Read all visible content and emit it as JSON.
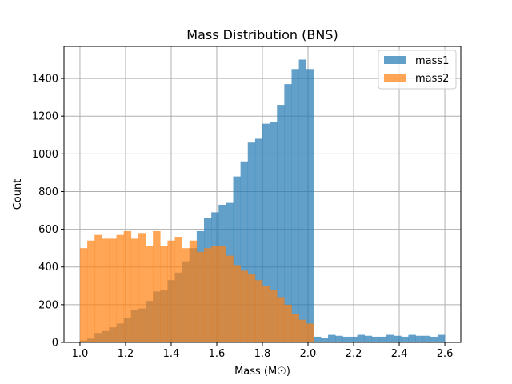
{
  "chart_data": {
    "type": "histogram",
    "title": "Mass Distribution (BNS)",
    "xlabel": "Mass (M☉)",
    "ylabel": "Count",
    "xlim": [
      0.93,
      2.67
    ],
    "ylim": [
      0,
      1570
    ],
    "xticks": [
      1.0,
      1.2,
      1.4,
      1.6,
      1.8,
      2.0,
      2.2,
      2.4,
      2.6
    ],
    "xtick_labels": [
      "1.0",
      "1.2",
      "1.4",
      "1.6",
      "1.8",
      "2.0",
      "2.2",
      "2.4",
      "2.6"
    ],
    "yticks": [
      0,
      200,
      400,
      600,
      800,
      1000,
      1200,
      1400
    ],
    "ytick_labels": [
      "0",
      "200",
      "400",
      "600",
      "800",
      "1000",
      "1200",
      "1400"
    ],
    "grid": true,
    "legend_position": "top-right",
    "bins": {
      "start": 1.0,
      "end": 2.6,
      "count": 50,
      "width": 0.032
    },
    "series": [
      {
        "name": "mass1",
        "color": "#1f77b4",
        "alpha": 0.7,
        "values": [
          10,
          20,
          50,
          60,
          80,
          100,
          130,
          170,
          180,
          220,
          270,
          280,
          330,
          370,
          430,
          500,
          590,
          660,
          690,
          730,
          740,
          880,
          960,
          1060,
          1080,
          1160,
          1170,
          1260,
          1370,
          1450,
          1500,
          1450,
          30,
          25,
          40,
          35,
          30,
          30,
          40,
          35,
          30,
          30,
          40,
          35,
          30,
          40,
          35,
          35,
          30,
          40
        ]
      },
      {
        "name": "mass2",
        "color": "#ff7f0e",
        "alpha": 0.7,
        "values": [
          500,
          540,
          570,
          550,
          550,
          570,
          590,
          550,
          580,
          510,
          590,
          510,
          540,
          560,
          500,
          540,
          480,
          500,
          510,
          510,
          460,
          410,
          380,
          360,
          330,
          300,
          280,
          240,
          200,
          150,
          120,
          100,
          0,
          0,
          0,
          0,
          0,
          0,
          0,
          0,
          0,
          0,
          0,
          0,
          0,
          0,
          0,
          0,
          0,
          0
        ]
      }
    ]
  }
}
